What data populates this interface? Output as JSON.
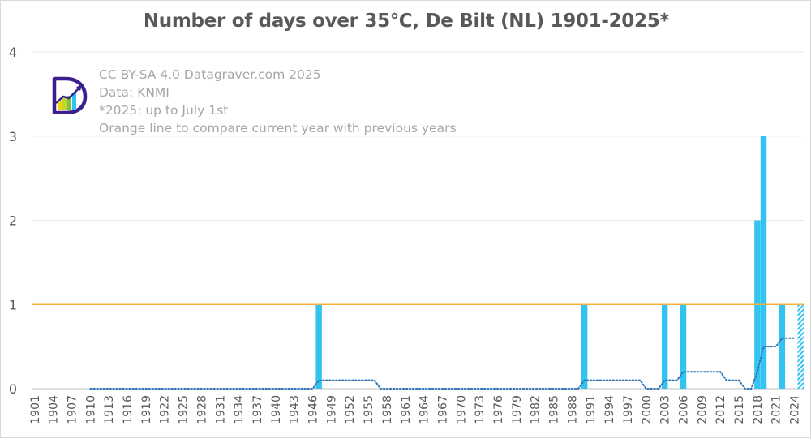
{
  "chart_data": {
    "type": "bar",
    "title": "Number of days over 35℃, De Bilt (NL) 1901-2025*",
    "xlabel": "",
    "ylabel": "",
    "ylim": [
      0,
      4
    ],
    "yticks": [
      0,
      1,
      2,
      3,
      4
    ],
    "x_range": [
      1901,
      2025
    ],
    "x_tick_labels": [
      "1901",
      "1904",
      "1907",
      "1910",
      "1913",
      "1916",
      "1919",
      "1922",
      "1925",
      "1928",
      "1931",
      "1934",
      "1937",
      "1940",
      "1943",
      "1946",
      "1949",
      "1952",
      "1955",
      "1958",
      "1961",
      "1964",
      "1967",
      "1970",
      "1973",
      "1976",
      "1979",
      "1982",
      "1985",
      "1988",
      "1991",
      "1994",
      "1997",
      "2000",
      "2003",
      "2006",
      "2009",
      "2012",
      "2015",
      "2018",
      "2021",
      "2024"
    ],
    "grid": true,
    "bar_color": "#33c3f0",
    "bars": [
      {
        "year": 1947,
        "value": 1
      },
      {
        "year": 1990,
        "value": 1
      },
      {
        "year": 2003,
        "value": 1
      },
      {
        "year": 2006,
        "value": 1
      },
      {
        "year": 2018,
        "value": 2
      },
      {
        "year": 2019,
        "value": 3
      },
      {
        "year": 2022,
        "value": 1
      },
      {
        "year": 2025,
        "value": 1,
        "partial": true
      }
    ],
    "reference_line": {
      "value": 1,
      "color": "#f5b041"
    },
    "moving_average": {
      "color": "#2e75b6",
      "style": "dotted",
      "points": [
        {
          "year": 1910,
          "value": 0
        },
        {
          "year": 1946,
          "value": 0
        },
        {
          "year": 1947,
          "value": 0.1
        },
        {
          "year": 1956,
          "value": 0.1
        },
        {
          "year": 1957,
          "value": 0
        },
        {
          "year": 1989,
          "value": 0
        },
        {
          "year": 1990,
          "value": 0.1
        },
        {
          "year": 1999,
          "value": 0.1
        },
        {
          "year": 2000,
          "value": 0
        },
        {
          "year": 2002,
          "value": 0
        },
        {
          "year": 2003,
          "value": 0.1
        },
        {
          "year": 2005,
          "value": 0.1
        },
        {
          "year": 2006,
          "value": 0.2
        },
        {
          "year": 2012,
          "value": 0.2
        },
        {
          "year": 2013,
          "value": 0.1
        },
        {
          "year": 2015,
          "value": 0.1
        },
        {
          "year": 2016,
          "value": 0
        },
        {
          "year": 2017,
          "value": 0
        },
        {
          "year": 2018,
          "value": 0.2
        },
        {
          "year": 2019,
          "value": 0.5
        },
        {
          "year": 2021,
          "value": 0.5
        },
        {
          "year": 2022,
          "value": 0.6
        },
        {
          "year": 2024,
          "value": 0.6
        }
      ]
    }
  },
  "annotations": [
    "CC BY-SA 4.0 Datagraver.com 2025",
    "Data: KNMI",
    "*2025: up to July 1st",
    "Orange line to compare current year with previous years"
  ],
  "logo": {
    "name": "datagraver-logo-icon",
    "colors": [
      "#3b1f8c",
      "#f2d600",
      "#7cc242",
      "#33c3f0"
    ]
  }
}
